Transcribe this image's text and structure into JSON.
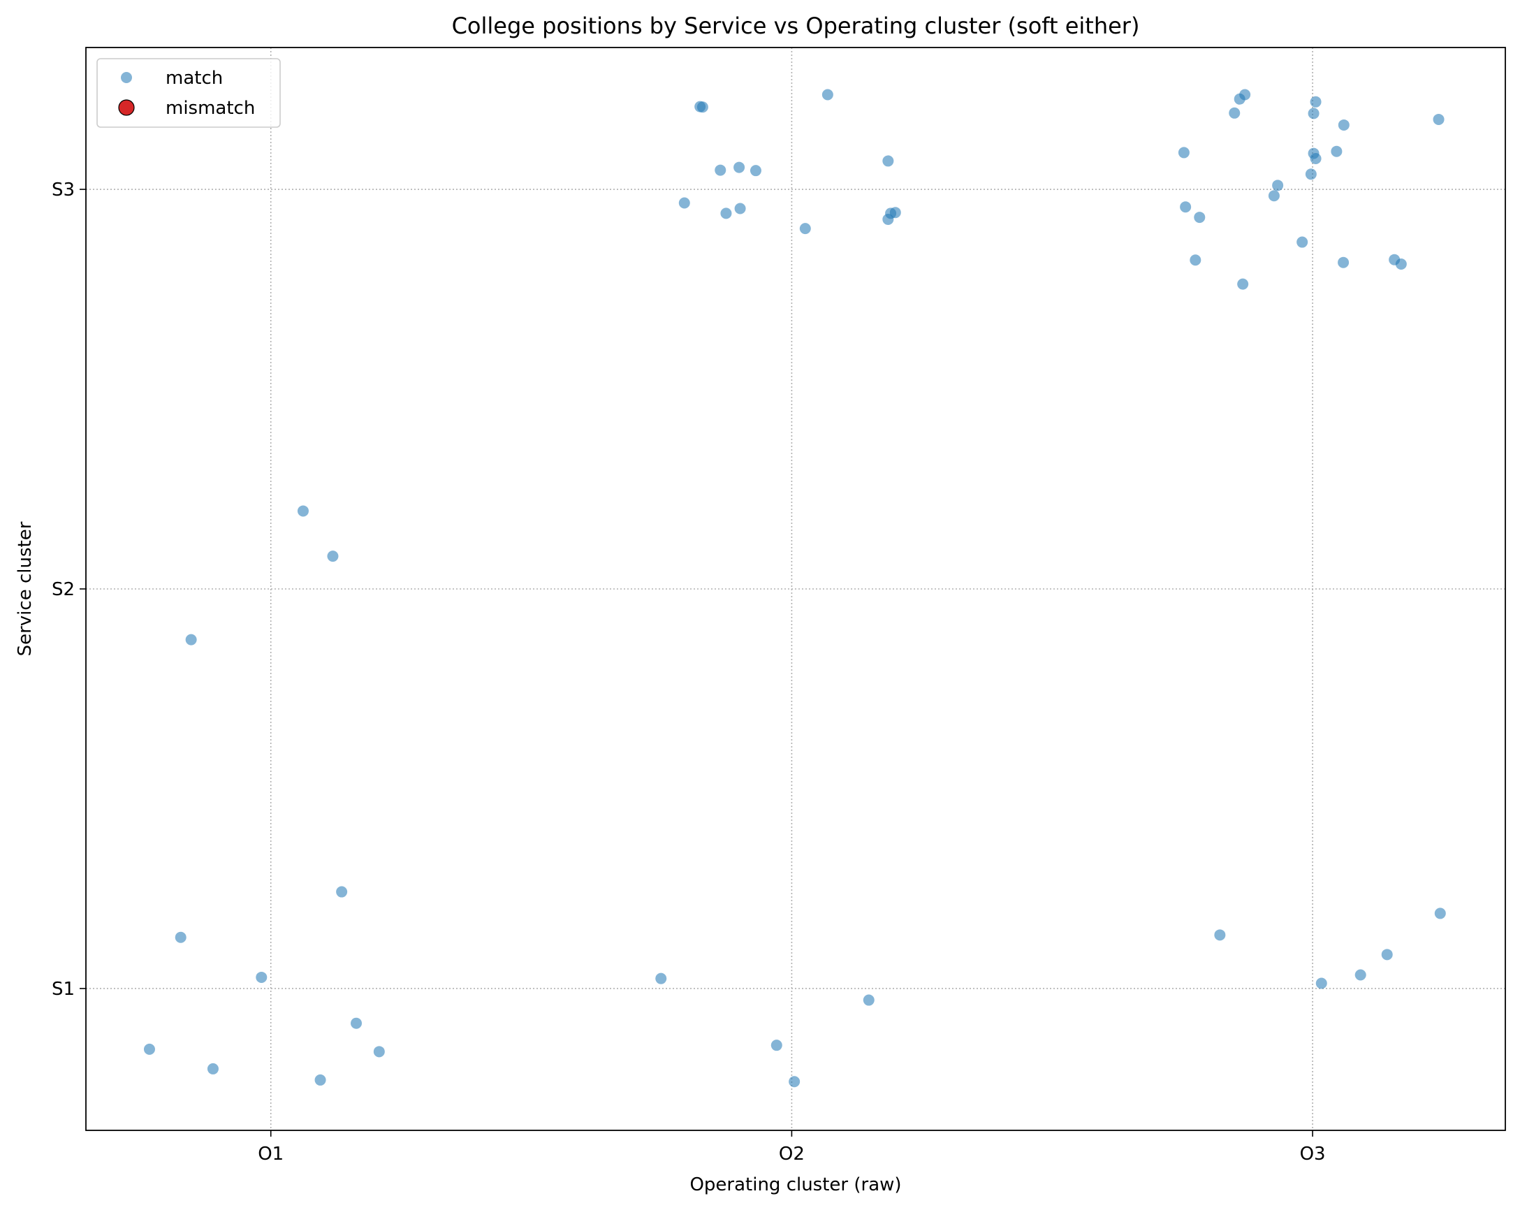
{
  "chart_data": {
    "type": "scatter",
    "title": "College positions by Service vs Operating cluster (soft either)",
    "xlabel": "Operating cluster (raw)",
    "ylabel": "Service cluster",
    "x_ticks": [
      {
        "value": 1,
        "label": "O1"
      },
      {
        "value": 2,
        "label": "O2"
      },
      {
        "value": 3,
        "label": "O3"
      }
    ],
    "y_ticks": [
      {
        "value": 1,
        "label": "S1"
      },
      {
        "value": 2,
        "label": "S2"
      },
      {
        "value": 3,
        "label": "S3"
      }
    ],
    "xlim": [
      0.645,
      3.37
    ],
    "ylim": [
      0.645,
      3.355
    ],
    "grid": true,
    "legend": {
      "placement": "top-left",
      "entries": [
        {
          "label": "match",
          "color": "#1f77b4"
        },
        {
          "label": "mismatch",
          "color": "#d62728"
        }
      ]
    },
    "series": [
      {
        "name": "match",
        "color": "#1f77b4",
        "points": [
          [
            1.062,
            2.195
          ],
          [
            1.119,
            2.082
          ],
          [
            0.847,
            1.873
          ],
          [
            1.136,
            1.242
          ],
          [
            0.827,
            1.128
          ],
          [
            0.982,
            1.028
          ],
          [
            0.767,
            0.848
          ],
          [
            1.164,
            0.913
          ],
          [
            1.208,
            0.842
          ],
          [
            0.889,
            0.799
          ],
          [
            1.095,
            0.771
          ],
          [
            1.749,
            1.025
          ],
          [
            2.148,
            0.971
          ],
          [
            1.971,
            0.858
          ],
          [
            2.005,
            0.767
          ],
          [
            2.822,
            1.134
          ],
          [
            3.092,
            1.034
          ],
          [
            3.017,
            1.013
          ],
          [
            3.143,
            1.085
          ],
          [
            3.245,
            1.188
          ],
          [
            1.824,
            3.207
          ],
          [
            1.829,
            3.206
          ],
          [
            2.069,
            3.237
          ],
          [
            1.863,
            3.048
          ],
          [
            1.899,
            3.055
          ],
          [
            1.931,
            3.047
          ],
          [
            2.185,
            3.071
          ],
          [
            1.794,
            2.966
          ],
          [
            1.874,
            2.94
          ],
          [
            1.901,
            2.952
          ],
          [
            2.026,
            2.902
          ],
          [
            2.185,
            2.925
          ],
          [
            2.19,
            2.94
          ],
          [
            2.199,
            2.942
          ],
          [
            2.86,
            3.226
          ],
          [
            2.87,
            3.237
          ],
          [
            2.85,
            3.191
          ],
          [
            3.006,
            3.219
          ],
          [
            3.002,
            3.19
          ],
          [
            3.06,
            3.161
          ],
          [
            3.242,
            3.175
          ],
          [
            2.753,
            3.092
          ],
          [
            3.002,
            3.09
          ],
          [
            3.006,
            3.077
          ],
          [
            3.046,
            3.095
          ],
          [
            2.933,
            3.01
          ],
          [
            2.926,
            2.984
          ],
          [
            2.997,
            3.038
          ],
          [
            2.756,
            2.956
          ],
          [
            2.783,
            2.93
          ],
          [
            2.98,
            2.868
          ],
          [
            2.775,
            2.823
          ],
          [
            3.059,
            2.817
          ],
          [
            3.157,
            2.824
          ],
          [
            3.17,
            2.813
          ],
          [
            2.866,
            2.763
          ]
        ]
      },
      {
        "name": "mismatch",
        "color": "#d62728",
        "points": []
      }
    ]
  }
}
